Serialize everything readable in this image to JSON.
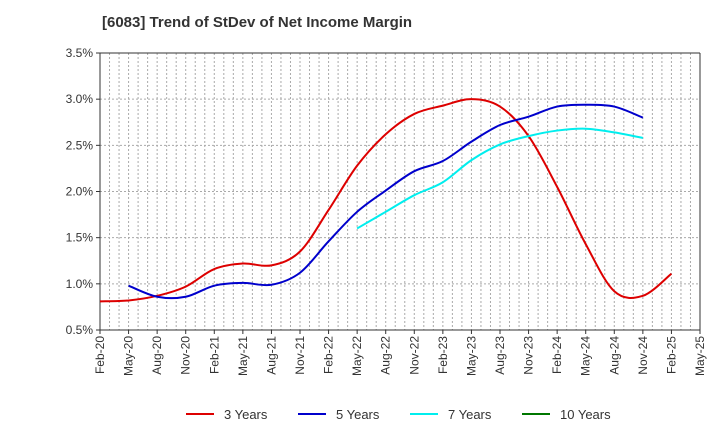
{
  "chart_data": {
    "type": "line",
    "title": "[6083]  Trend of StDev of Net Income Margin",
    "xlabel": "",
    "ylabel": "",
    "ylim": [
      0.5,
      3.5
    ],
    "y_ticks": [
      "0.5%",
      "1.0%",
      "1.5%",
      "2.0%",
      "2.5%",
      "3.0%",
      "3.5%"
    ],
    "y_tick_values": [
      0.5,
      1.0,
      1.5,
      2.0,
      2.5,
      3.0,
      3.5
    ],
    "x_ticks": [
      "Feb-20",
      "May-20",
      "Aug-20",
      "Nov-20",
      "Feb-21",
      "May-21",
      "Aug-21",
      "Nov-21",
      "Feb-22",
      "May-22",
      "Aug-22",
      "Nov-22",
      "Feb-23",
      "May-23",
      "Aug-23",
      "Nov-23",
      "Feb-24",
      "May-24",
      "Aug-24",
      "Nov-24",
      "Feb-25",
      "May-25"
    ],
    "grid": true,
    "legend_position": "bottom",
    "series": [
      {
        "name": "3 Years",
        "color": "#dd0000",
        "start_index": 0,
        "values": [
          0.81,
          0.82,
          0.87,
          0.97,
          1.16,
          1.22,
          1.2,
          1.35,
          1.8,
          2.28,
          2.62,
          2.84,
          2.93,
          3.0,
          2.92,
          2.6,
          2.05,
          1.43,
          0.92,
          0.87,
          1.11
        ]
      },
      {
        "name": "5 Years",
        "color": "#0000cc",
        "start_index": 1,
        "values": [
          0.98,
          0.86,
          0.86,
          0.98,
          1.01,
          0.99,
          1.12,
          1.46,
          1.78,
          2.01,
          2.22,
          2.33,
          2.54,
          2.72,
          2.81,
          2.92,
          2.94,
          2.92,
          2.8
        ]
      },
      {
        "name": "7 Years",
        "color": "#00eeee",
        "start_index": 9,
        "values": [
          1.6,
          1.78,
          1.96,
          2.1,
          2.34,
          2.51,
          2.6,
          2.66,
          2.68,
          2.64,
          2.58
        ]
      },
      {
        "name": "10 Years",
        "color": "#007700",
        "start_index": 0,
        "values": []
      }
    ]
  }
}
